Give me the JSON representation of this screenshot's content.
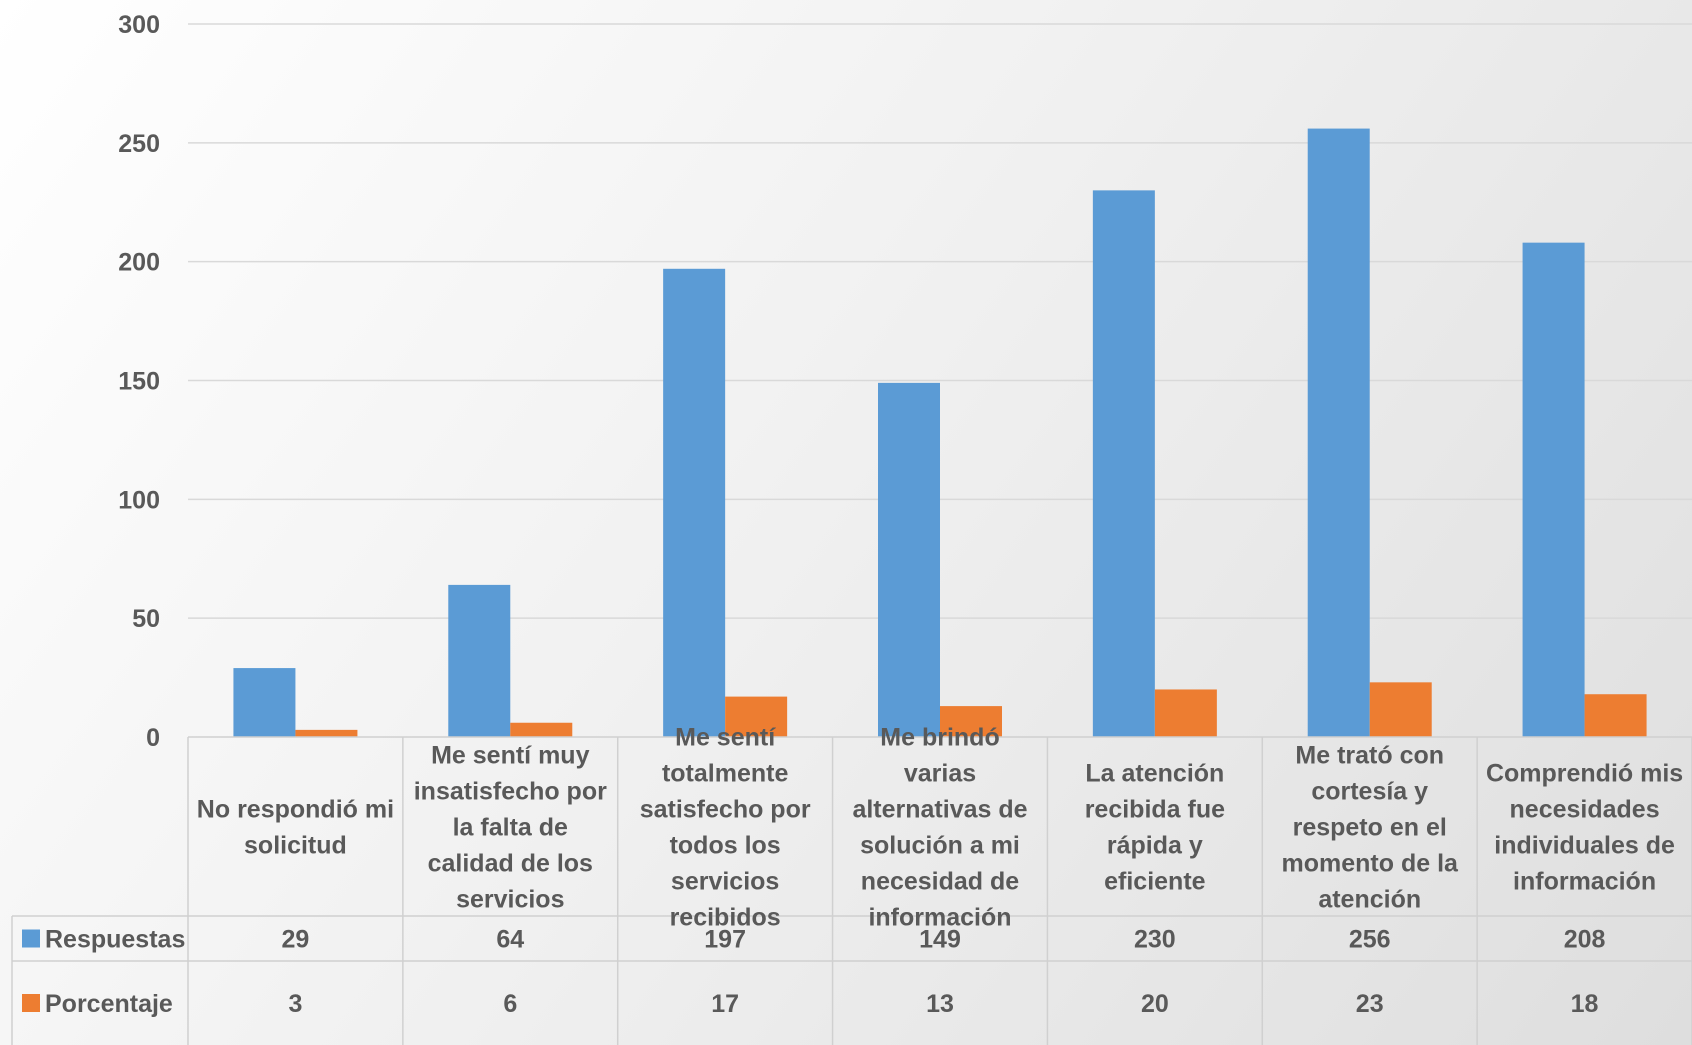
{
  "chart_data": {
    "type": "bar",
    "categories": [
      "No respondió mi solicitud",
      "Me sentí muy insatisfecho por la falta de calidad de los servicios",
      "Me sentí totalmente satisfecho por todos los servicios recibidos",
      "Me brindó varias alternativas de solución a mi necesidad de información",
      "La atención recibida fue rápida y eficiente",
      "Me trató con cortesía y respeto en el momento de la atención",
      "Comprendió mis necesidades individuales de información"
    ],
    "category_lines": [
      [
        "No respondió mi",
        "solicitud"
      ],
      [
        "Me sentí muy",
        "insatisfecho por",
        "la falta de",
        "calidad de los",
        "servicios"
      ],
      [
        "Me sentí",
        "totalmente",
        "satisfecho por",
        "todos los",
        "servicios",
        "recibidos"
      ],
      [
        "Me brindó",
        "varias",
        "alternativas de",
        "solución a mi",
        "necesidad de",
        "información"
      ],
      [
        "La atención",
        "recibida fue",
        "rápida y",
        "eficiente"
      ],
      [
        "Me trató con",
        "cortesía y",
        "respeto en el",
        "momento de la",
        "atención"
      ],
      [
        "Comprendió mis",
        "necesidades",
        "individuales de",
        "información"
      ]
    ],
    "series": [
      {
        "name": "Respuestas",
        "color": "#5b9bd5",
        "values": [
          29,
          64,
          197,
          149,
          230,
          256,
          208
        ]
      },
      {
        "name": "Porcentaje",
        "color": "#ed7d31",
        "values": [
          3,
          6,
          17,
          13,
          20,
          23,
          18
        ]
      }
    ],
    "ylim": [
      0,
      300
    ],
    "yticks": [
      0,
      50,
      100,
      150,
      200,
      250,
      300
    ],
    "grid": true,
    "legend": "data-table"
  }
}
